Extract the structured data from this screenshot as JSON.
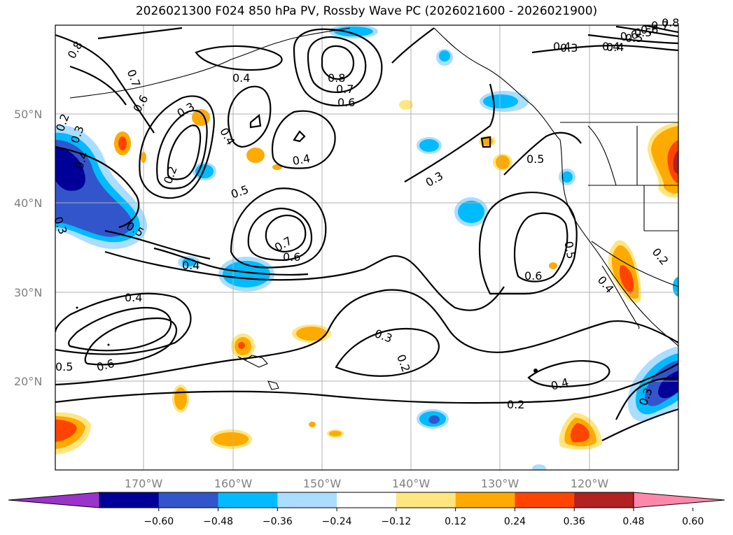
{
  "title": "2026021300 F024 850 hPa PV, Rossby Wave PC (2026021600 - 2026021900)",
  "lat_labels": [
    "50°N",
    "40°N",
    "30°N",
    "20°N"
  ],
  "lon_labels": [
    "170°W",
    "160°W",
    "150°W",
    "140°W",
    "130°W",
    "120°W"
  ],
  "colorbar": {
    "colors": [
      "#9933cc",
      "#000099",
      "#3355cc",
      "#00bbff",
      "#aaddff",
      "#ffffff",
      "#ffe680",
      "#ffaa00",
      "#ff4400",
      "#b22222",
      "#ff88aa"
    ],
    "tick_labels": [
      "−0.60",
      "−0.48",
      "−0.36",
      "−0.24",
      "−0.12",
      "0.12",
      "0.24",
      "0.36",
      "0.48",
      "0.60"
    ]
  },
  "contour_labels": [
    "0.8",
    "0.7",
    "0.6",
    "0.4",
    "0.3",
    "0.2",
    "0.4",
    "0.5",
    "0.3",
    "0.4",
    "0.7",
    "0.6",
    "0.5",
    "0.4",
    "0.3",
    "0.4",
    "0.5",
    "0.6",
    "0.5",
    "0.4",
    "0.2",
    "0.3",
    "0.2",
    "0.4",
    "0.6",
    "0.5",
    "0.3",
    "0.2",
    "0.4",
    "0.6",
    "0.5",
    "0.4",
    "0.8",
    "0.7",
    "0.6",
    "0.3",
    "0.4",
    "0.5",
    "0.6",
    "0.7",
    "0.8",
    "0.2",
    "0.3",
    "0.4"
  ]
}
